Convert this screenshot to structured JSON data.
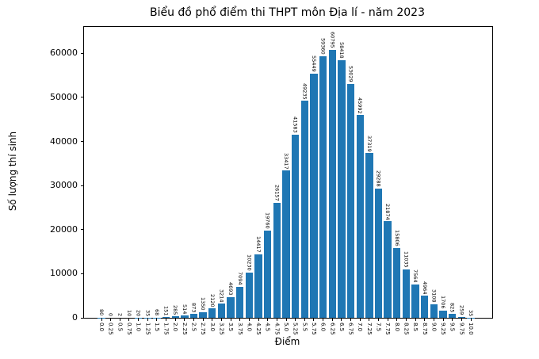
{
  "chart_data": {
    "type": "bar",
    "title": "Biểu đồ phổ điểm thi THPT môn Địa lí - năm 2023",
    "xlabel": "Điểm",
    "ylabel": "Số lượng thí sinh",
    "categories": [
      "0.0",
      "0.25",
      "0.5",
      "0.75",
      "1.0",
      "1.25",
      "1.5",
      "1.75",
      "2.0",
      "2.25",
      "2.5",
      "2.75",
      "3.0",
      "3.25",
      "3.5",
      "3.75",
      "4.0",
      "4.25",
      "4.5",
      "4.75",
      "5.0",
      "5.25",
      "5.5",
      "5.75",
      "6.0",
      "6.25",
      "6.5",
      "6.75",
      "7.0",
      "7.25",
      "7.5",
      "7.75",
      "8.0",
      "8.25",
      "8.5",
      "8.75",
      "9.0",
      "9.25",
      "9.5",
      "9.75",
      "10.0"
    ],
    "values": [
      80,
      0,
      2,
      10,
      20,
      35,
      68,
      151,
      285,
      514,
      873,
      1350,
      2120,
      3214,
      4693,
      7094,
      10230,
      14417,
      19760,
      26157,
      33417,
      41583,
      49235,
      55449,
      59360,
      60795,
      58418,
      53029,
      45992,
      37319,
      29288,
      21874,
      15806,
      11035,
      7564,
      4964,
      3108,
      1706,
      825,
      259,
      35
    ],
    "bar_value_labels_shown": true,
    "yticks": [
      0,
      10000,
      20000,
      30000,
      40000,
      50000,
      60000
    ],
    "ylim": [
      0,
      66000
    ],
    "xtick_label_rotation_deg": 90,
    "bar_value_label_rotation_deg": 90,
    "bar_color": "#1f77b4",
    "grid": false,
    "legend_position": "none"
  }
}
